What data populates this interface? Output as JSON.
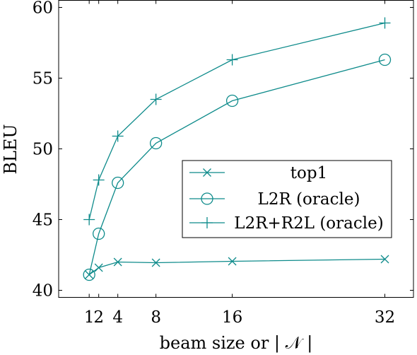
{
  "chart_data": {
    "type": "line",
    "xlabel": "beam size or | 𝒩 |",
    "ylabel": "BLEU",
    "xlim": [
      -2.2,
      35
    ],
    "ylim": [
      39.5,
      60.5
    ],
    "xticks": [
      1,
      2,
      4,
      8,
      16,
      32
    ],
    "yticks": [
      40,
      45,
      50,
      55,
      60
    ],
    "grid": false,
    "legend_position": "center-right",
    "color": "#0e8b8b",
    "series": [
      {
        "name": "top1",
        "marker": "x",
        "x": [
          1,
          2,
          4,
          8,
          16,
          32
        ],
        "values": [
          41.1,
          41.6,
          42.0,
          41.95,
          42.05,
          42.2
        ]
      },
      {
        "name": "L2R (oracle)",
        "marker": "circle",
        "x": [
          1,
          2,
          4,
          8,
          16,
          32
        ],
        "values": [
          41.1,
          44.0,
          47.6,
          50.4,
          53.4,
          56.3
        ]
      },
      {
        "name": "L2R+R2L (oracle)",
        "marker": "plus",
        "x": [
          1,
          2,
          4,
          8,
          16,
          32
        ],
        "values": [
          45.0,
          47.8,
          50.9,
          53.5,
          56.3,
          58.9
        ]
      }
    ]
  }
}
